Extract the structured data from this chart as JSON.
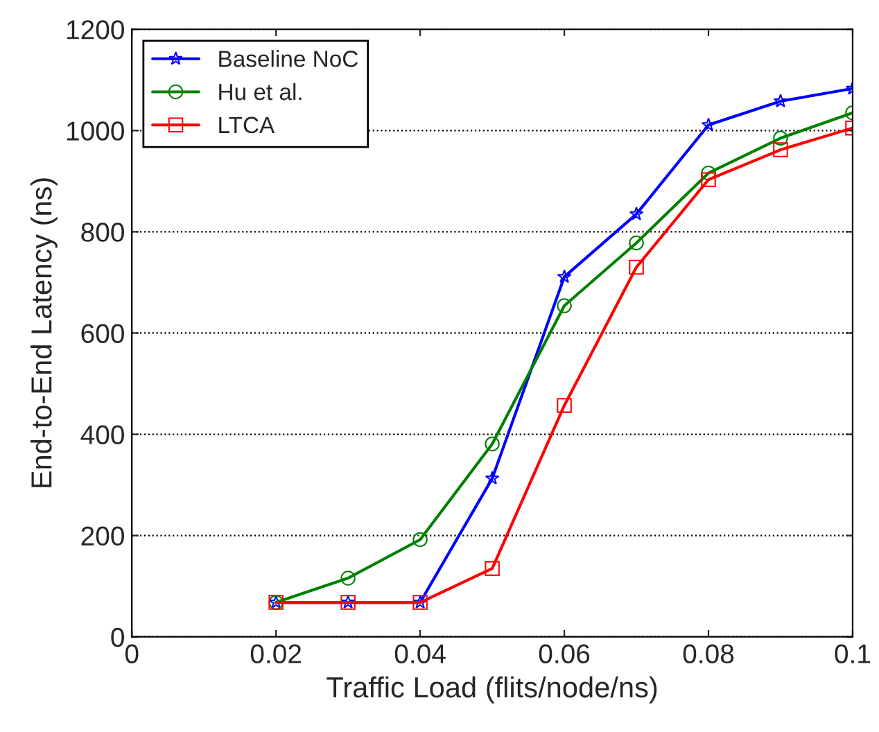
{
  "chart_data": {
    "type": "line",
    "xlabel": "Traffic Load (flits/node/ns)",
    "ylabel": "End-to-End Latency (ns)",
    "x": [
      0.02,
      0.03,
      0.04,
      0.05,
      0.06,
      0.07,
      0.08,
      0.09,
      0.1
    ],
    "series": [
      {
        "name": "Baseline NoC",
        "color": "#0000ff",
        "marker": "star",
        "values": [
          68,
          68,
          68,
          313,
          711,
          835,
          1011,
          1058,
          1083
        ]
      },
      {
        "name": "Hu et al.",
        "color": "#008000",
        "marker": "circle",
        "values": [
          68,
          116,
          192,
          381,
          654,
          778,
          916,
          985,
          1035
        ]
      },
      {
        "name": "LTCA",
        "color": "#ff0000",
        "marker": "square",
        "values": [
          68,
          68,
          68,
          135,
          457,
          730,
          903,
          962,
          1005
        ]
      }
    ],
    "xlim": [
      0,
      0.1
    ],
    "xticks": [
      0,
      0.02,
      0.04,
      0.06,
      0.08,
      0.1
    ],
    "ylim": [
      0,
      1200
    ],
    "yticks": [
      0,
      200,
      400,
      600,
      800,
      1000,
      1200
    ],
    "grid": "y",
    "legend": "top left",
    "line_style": "solid"
  }
}
